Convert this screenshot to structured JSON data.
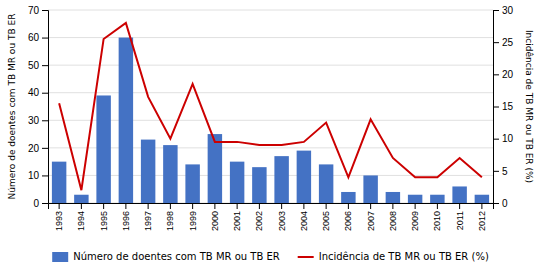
{
  "chart_data": {
    "type": "bar",
    "categories": [
      "1993",
      "1994",
      "1995",
      "1996",
      "1997",
      "1998",
      "1999",
      "2000",
      "2001",
      "2002",
      "2003",
      "2004",
      "2005",
      "2006",
      "2007",
      "2008",
      "2009",
      "2010",
      "2011",
      "2012"
    ],
    "series": [
      {
        "name": "Número de doentes com TB MR ou TB ER",
        "type": "bar",
        "color": "#4472C4",
        "values": [
          15,
          3,
          39,
          60,
          23,
          21,
          14,
          25,
          15,
          13,
          17,
          19,
          14,
          4,
          10,
          4,
          3,
          3,
          6,
          3
        ]
      },
      {
        "name": "Incidência de TB MR ou TB ER (%)",
        "type": "line",
        "color": "#CC0000",
        "axis": "y2",
        "values": [
          15.5,
          2.0,
          25.5,
          28.0,
          16.5,
          10.0,
          18.5,
          9.5,
          9.5,
          9.0,
          9.0,
          9.5,
          12.5,
          4.0,
          13.0,
          7.0,
          4.0,
          4.0,
          7.0,
          4.0
        ]
      }
    ],
    "ylabel": "Número de doentes com TB MR ou TB ER",
    "y2label": "Incidência de TB MR ou TB ER (%)",
    "ylim": [
      0,
      70
    ],
    "yticks": [
      0,
      10,
      20,
      30,
      40,
      50,
      60,
      70
    ],
    "y2lim": [
      0,
      30
    ],
    "y2ticks": [
      0,
      5,
      10,
      15,
      20,
      25,
      30
    ],
    "grid": true,
    "legend": "bottom"
  }
}
